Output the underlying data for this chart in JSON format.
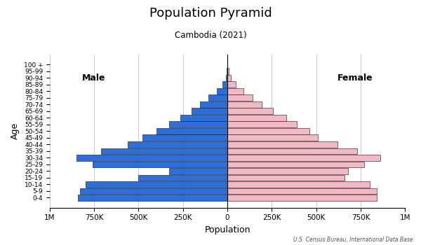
{
  "title": "Population Pyramid",
  "subtitle": "Cambodia (2021)",
  "source": "U.S. Census Bureau, International Data Base",
  "xlabel": "Population",
  "ylabel": "Age",
  "age_groups": [
    "0-4",
    "5-9",
    "10-14",
    "15-19",
    "20-24",
    "25-29",
    "30-34",
    "35-39",
    "40-44",
    "45-49",
    "50-54",
    "55-59",
    "60-64",
    "65-69",
    "70-74",
    "75-79",
    "80-84",
    "85-89",
    "90-94",
    "95-99",
    "100 +"
  ],
  "male": [
    840000,
    830000,
    800000,
    500000,
    330000,
    760000,
    850000,
    710000,
    560000,
    480000,
    400000,
    330000,
    265000,
    200000,
    155000,
    105000,
    60000,
    28000,
    10000,
    3000,
    800
  ],
  "female": [
    840000,
    840000,
    800000,
    660000,
    680000,
    770000,
    860000,
    730000,
    620000,
    510000,
    460000,
    390000,
    330000,
    255000,
    195000,
    140000,
    90000,
    48000,
    19000,
    6000,
    1500
  ],
  "male_color": "#2a6fdb",
  "female_color": "#f4b8c4",
  "male_edge": "#111111",
  "female_edge": "#111111",
  "xlim": 1000000,
  "background_color": "#ffffff",
  "grid_color": "#c0c0c0"
}
